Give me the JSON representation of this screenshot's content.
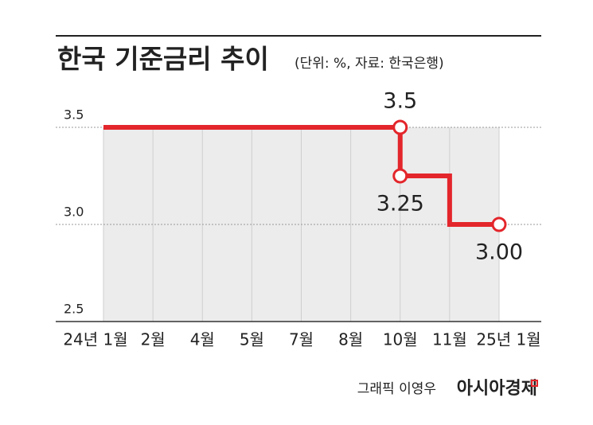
{
  "chart_data": {
    "type": "step-line",
    "title": "한국 기준금리 추이",
    "subtitle": "(단위: %, 자료: 한국은행)",
    "categories": [
      "24년 1월",
      "2월",
      "4월",
      "5월",
      "7월",
      "8월",
      "10월",
      "11월",
      "25년 1월"
    ],
    "series": [
      {
        "color": "#e3262b",
        "x": [
          "24년 1월",
          "10월",
          "10월",
          "11월",
          "11월",
          "25년 1월"
        ],
        "values": [
          3.5,
          3.5,
          3.25,
          3.25,
          3.0,
          3.0
        ],
        "value_labels": [
          null,
          "3.5",
          "3.25",
          null,
          null,
          "3.00"
        ]
      }
    ],
    "ylim": [
      2.5,
      3.5
    ],
    "yticks": [
      2.5,
      {
        "value": 3,
        "label": "3.0"
      },
      3.5
    ],
    "grid": true,
    "credit": "그래픽 이영우",
    "publisher": "아시아경제"
  }
}
